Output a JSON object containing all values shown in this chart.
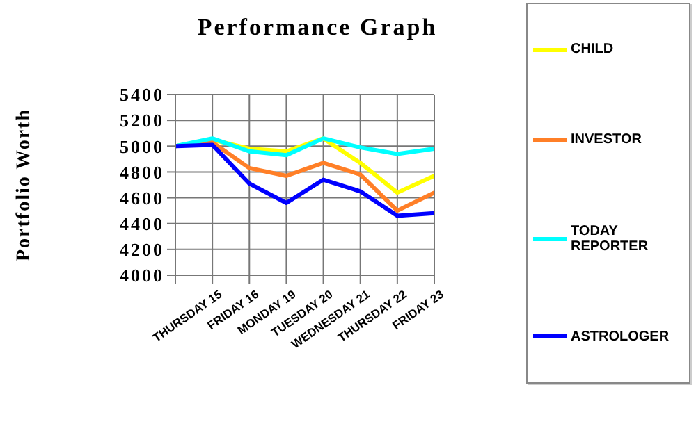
{
  "chart_data": {
    "type": "line",
    "title": "Performance Graph",
    "ylabel": "Portfolio Worth",
    "categories": [
      null,
      "THURSDAY 15",
      "FRIDAY 16",
      "MONDAY 19",
      "TUESDAY 20",
      "WEDNESDAY 21",
      "THURSDAY 22",
      "FRIDAY 23"
    ],
    "series": [
      {
        "name": "CHILD",
        "color": "#ffff00",
        "values": [
          5000,
          5050,
          4980,
          4960,
          5060,
          4870,
          4640,
          4770
        ]
      },
      {
        "name": "INVESTOR",
        "color": "#ff7f27",
        "values": [
          5000,
          5030,
          4830,
          4770,
          4870,
          4780,
          4500,
          4640
        ]
      },
      {
        "name": "TODAY REPORTER",
        "color": "#00ffff",
        "values": [
          5000,
          5060,
          4960,
          4930,
          5060,
          4990,
          4940,
          4980
        ]
      },
      {
        "name": "ASTROLOGER",
        "color": "#0000ff",
        "values": [
          5000,
          5010,
          4710,
          4560,
          4740,
          4650,
          4460,
          4480
        ]
      }
    ],
    "ylim": [
      4000,
      5400
    ],
    "yticks": [
      4000,
      4200,
      4400,
      4600,
      4800,
      5000,
      5200,
      5400
    ],
    "grid": true,
    "legend": "right",
    "marker": "none",
    "line_style": "solid"
  }
}
